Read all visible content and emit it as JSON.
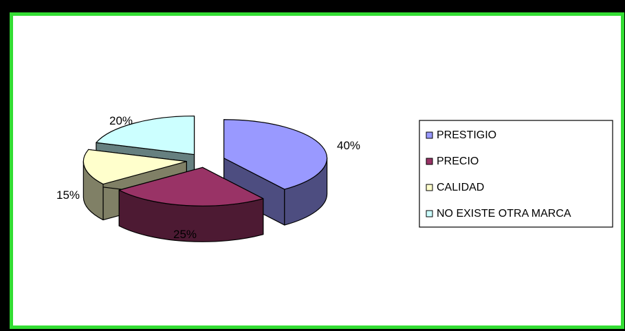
{
  "chart_data": {
    "type": "pie",
    "style": "3d-exploded",
    "categories": [
      "PRESTIGIO",
      "PRECIO",
      "CALIDAD",
      "NO EXISTE OTRA MARCA"
    ],
    "values": [
      40,
      25,
      15,
      20
    ],
    "value_labels": [
      "40%",
      "25%",
      "15%",
      "20%"
    ],
    "colors": {
      "top": [
        "#9999ff",
        "#993366",
        "#ffffcc",
        "#ccffff"
      ],
      "side": [
        "#4d4d80",
        "#4d1a33",
        "#808066",
        "#668080"
      ]
    },
    "legend": {
      "position": "right",
      "entries": [
        "PRESTIGIO",
        "PRECIO",
        "CALIDAD",
        "NO EXISTE OTRA MARCA"
      ]
    },
    "frame_color": "#33dd33"
  }
}
